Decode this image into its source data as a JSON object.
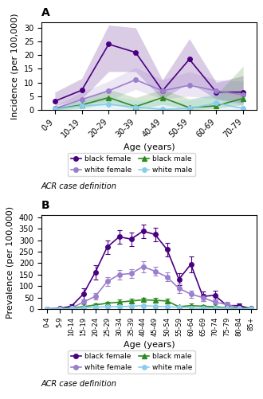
{
  "chart_data": [
    {
      "type": "line",
      "title": "A",
      "xlabel": "Age (years)",
      "ylabel": "Incidence (per 100,000)",
      "categories": [
        "0-9",
        "10-19",
        "20-29",
        "30-39",
        "40-49",
        "50-59",
        "60-69",
        "70-79"
      ],
      "series": [
        {
          "name": "black female",
          "color": "#4B0082",
          "marker": "o",
          "values": [
            3.2,
            7.2,
            24.0,
            21.0,
            7.0,
            18.5,
            6.5,
            6.5
          ],
          "lower": [
            1.5,
            4.0,
            14.0,
            14.0,
            4.0,
            10.0,
            4.0,
            2.5
          ],
          "upper": [
            6.5,
            11.5,
            31.0,
            30.0,
            11.0,
            26.0,
            10.0,
            12.5
          ]
        },
        {
          "name": "white female",
          "color": "#9B7FCC",
          "marker": "o",
          "values": [
            0.5,
            3.8,
            7.0,
            11.0,
            7.0,
            9.0,
            7.0,
            5.5
          ],
          "lower": [
            0.2,
            2.0,
            3.5,
            7.5,
            4.0,
            5.0,
            4.0,
            1.5
          ],
          "upper": [
            1.5,
            6.5,
            10.5,
            15.5,
            11.0,
            14.0,
            11.0,
            10.5
          ]
        },
        {
          "name": "black male",
          "color": "#2E8B22",
          "marker": "^",
          "values": [
            0.3,
            1.8,
            4.5,
            1.2,
            4.5,
            0.8,
            1.5,
            4.2
          ],
          "lower": [
            0.0,
            0.5,
            2.5,
            0.0,
            2.0,
            0.0,
            0.5,
            2.0
          ],
          "upper": [
            1.0,
            3.5,
            7.5,
            4.5,
            7.5,
            4.0,
            5.5,
            16.0
          ]
        },
        {
          "name": "white male",
          "color": "#87CEEB",
          "marker": "o",
          "values": [
            0.2,
            1.5,
            2.0,
            1.0,
            0.2,
            0.5,
            2.5,
            0.5
          ],
          "lower": [
            0.0,
            0.5,
            0.5,
            0.0,
            0.0,
            0.0,
            0.5,
            0.0
          ],
          "upper": [
            0.8,
            3.5,
            5.0,
            3.5,
            3.5,
            3.5,
            6.5,
            3.5
          ]
        }
      ],
      "ylim": [
        0,
        32
      ],
      "yticks": [
        0,
        5,
        10,
        15,
        20,
        25,
        30
      ],
      "legend": "lower center",
      "annotations": [
        "ACR case definition"
      ]
    },
    {
      "type": "line",
      "title": "B",
      "xlabel": "Age (years)",
      "ylabel": "Prevalence (per 100,000)",
      "categories": [
        "0-4",
        "5-9",
        "10-14",
        "15-19",
        "20-24",
        "25-29",
        "30-34",
        "35-39",
        "40-44",
        "45-49",
        "50-54",
        "55-59",
        "60-64",
        "65-69",
        "70-74",
        "75-79",
        "80-84",
        "85+"
      ],
      "series": [
        {
          "name": "black female",
          "color": "#4B0082",
          "marker": "o",
          "values": [
            1.0,
            2.5,
            12.0,
            65.0,
            160.0,
            270.0,
            315.0,
            305.0,
            340.0,
            325.0,
            260.0,
            130.0,
            195.0,
            55.0,
            60.0,
            15.0,
            15.0,
            2.0
          ],
          "err": [
            1.0,
            2.0,
            8.0,
            25.0,
            30.0,
            30.0,
            30.0,
            30.0,
            30.0,
            30.0,
            30.0,
            25.0,
            35.0,
            20.0,
            20.0,
            10.0,
            10.0,
            3.0
          ]
        },
        {
          "name": "white female",
          "color": "#9B7FCC",
          "marker": "o",
          "values": [
            0.5,
            1.0,
            4.0,
            30.0,
            55.0,
            120.0,
            150.0,
            155.0,
            185.0,
            165.0,
            140.0,
            90.0,
            65.0,
            50.0,
            30.0,
            20.0,
            5.0,
            2.0
          ],
          "err": [
            0.5,
            1.0,
            3.0,
            10.0,
            15.0,
            20.0,
            20.0,
            20.0,
            25.0,
            20.0,
            20.0,
            20.0,
            15.0,
            15.0,
            10.0,
            10.0,
            5.0,
            2.0
          ]
        },
        {
          "name": "black male",
          "color": "#2E8B22",
          "marker": "^",
          "values": [
            0.5,
            1.0,
            4.0,
            10.0,
            18.0,
            25.0,
            30.0,
            35.0,
            40.0,
            38.0,
            35.0,
            10.0,
            15.0,
            12.0,
            10.0,
            5.0,
            5.0,
            2.0
          ],
          "err": [
            0.5,
            1.0,
            2.0,
            5.0,
            8.0,
            8.0,
            10.0,
            10.0,
            10.0,
            10.0,
            10.0,
            5.0,
            8.0,
            5.0,
            5.0,
            3.0,
            3.0,
            2.0
          ]
        },
        {
          "name": "white male",
          "color": "#87CEEB",
          "marker": "o",
          "values": [
            0.2,
            0.5,
            2.0,
            5.0,
            8.0,
            10.0,
            10.0,
            12.0,
            15.0,
            12.0,
            10.0,
            8.0,
            5.0,
            3.0,
            5.0,
            3.0,
            2.0,
            1.0
          ],
          "err": [
            0.2,
            0.5,
            1.0,
            2.0,
            3.0,
            3.0,
            3.0,
            3.0,
            4.0,
            3.0,
            3.0,
            3.0,
            2.0,
            2.0,
            2.0,
            2.0,
            1.0,
            1.0
          ]
        }
      ],
      "ylim": [
        0,
        410
      ],
      "yticks": [
        0,
        50,
        100,
        150,
        200,
        250,
        300,
        350,
        400
      ],
      "legend": "lower center",
      "annotations": [
        "ACR case definition"
      ]
    }
  ]
}
